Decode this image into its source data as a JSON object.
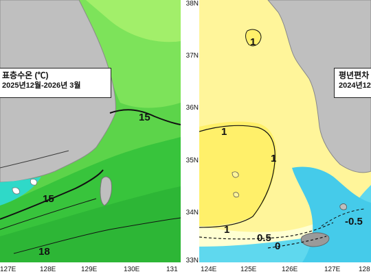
{
  "left_map": {
    "legend": {
      "title": "표층수온 (℃)",
      "period": "2025년12월-2026년 3월"
    },
    "contour_labels": [
      "15",
      "15",
      "18"
    ],
    "x_ticks": [
      "127E",
      "128E",
      "129E",
      "130E",
      "131"
    ],
    "colors": {
      "land": "#bfbfbf",
      "sea_warm": "#3ec83e",
      "sea_cool": "#9ef04a",
      "sea_cold": "#2fd9c8"
    }
  },
  "right_map": {
    "legend": {
      "title": "평년편차",
      "period": "2024년12"
    },
    "contour_labels": [
      "1",
      "1",
      "1",
      "1",
      "0.5",
      "0",
      "-0.5"
    ],
    "x_ticks": [
      "124E",
      "125E",
      "126E",
      "127E",
      "128"
    ],
    "y_ticks": [
      "38N",
      "37N",
      "36N",
      "35N",
      "34N",
      "33N"
    ],
    "colors": {
      "land": "#bfbfbf",
      "positive": "#fff37a",
      "neutral": "#ffffd0",
      "negative": "#58d8ee",
      "negative_strong": "#2fb8e0"
    }
  }
}
